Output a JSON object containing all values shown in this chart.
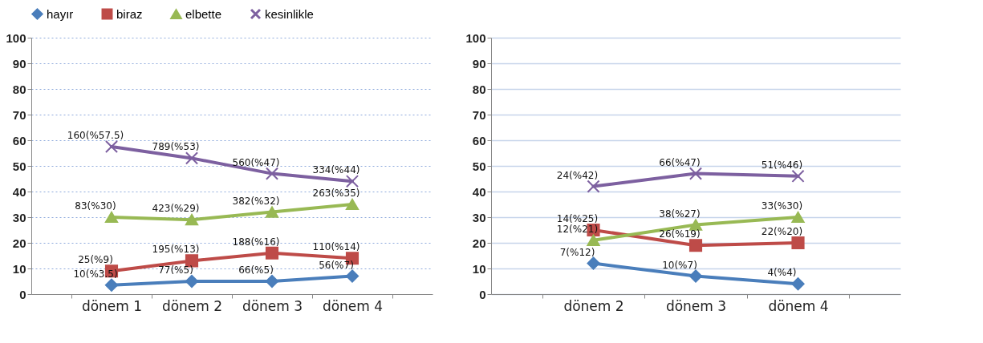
{
  "chart_data": [
    {
      "type": "line",
      "categories": [
        "dönem 1",
        "dönem 2",
        "dönem 3",
        "dönem 4"
      ],
      "ylim": [
        0,
        100
      ],
      "yticks": [
        0,
        10,
        20,
        30,
        40,
        50,
        60,
        70,
        80,
        90,
        100
      ],
      "grid": "y",
      "legend": "top",
      "series": [
        {
          "name": "hayır",
          "color": "#4a7ebb",
          "marker": "diamond",
          "values": [
            3.5,
            5,
            5,
            7
          ],
          "value_labels": [
            "10(%3.5)",
            "77(%5)",
            "66(%5)",
            "56(%7)"
          ]
        },
        {
          "name": "biraz",
          "color": "#be4b48",
          "marker": "square",
          "values": [
            9,
            13,
            16,
            14
          ],
          "value_labels": [
            "25(%9)",
            "195(%13)",
            "188(%16)",
            "110(%14)"
          ]
        },
        {
          "name": "elbette",
          "color": "#98b954",
          "marker": "triangle",
          "values": [
            30,
            29,
            32,
            35
          ],
          "value_labels": [
            "83(%30)",
            "423(%29)",
            "382(%32)",
            "263(%35)"
          ]
        },
        {
          "name": "kesinlikle",
          "color": "#7d60a0",
          "marker": "cross",
          "values": [
            57.5,
            53,
            47,
            44
          ],
          "value_labels": [
            "160(%57.5)",
            "789(%53)",
            "560(%47)",
            "334(%44)"
          ]
        }
      ]
    },
    {
      "type": "line",
      "categories": [
        "dönem 2",
        "dönem 3",
        "dönem 4"
      ],
      "ylim": [
        0,
        100
      ],
      "yticks": [
        0,
        10,
        20,
        30,
        40,
        50,
        60,
        70,
        80,
        90,
        100
      ],
      "grid": "y",
      "series": [
        {
          "color": "#4a7ebb",
          "marker": "diamond",
          "values": [
            12,
            7,
            4
          ],
          "value_labels": [
            "7(%12)",
            "10(%7)",
            "4(%4)"
          ]
        },
        {
          "color": "#be4b48",
          "marker": "square",
          "values": [
            25,
            19,
            20
          ],
          "value_labels": [
            "14(%25)",
            "26(%19)",
            "22(%20)"
          ]
        },
        {
          "color": "#98b954",
          "marker": "triangle",
          "values": [
            21,
            27,
            30
          ],
          "value_labels": [
            "12(%21)",
            "38(%27)",
            "33(%30)"
          ]
        },
        {
          "color": "#7d60a0",
          "marker": "cross",
          "values": [
            42,
            47,
            46
          ],
          "value_labels": [
            "24(%42)",
            "66(%47)",
            "51(%46)"
          ]
        }
      ]
    }
  ]
}
